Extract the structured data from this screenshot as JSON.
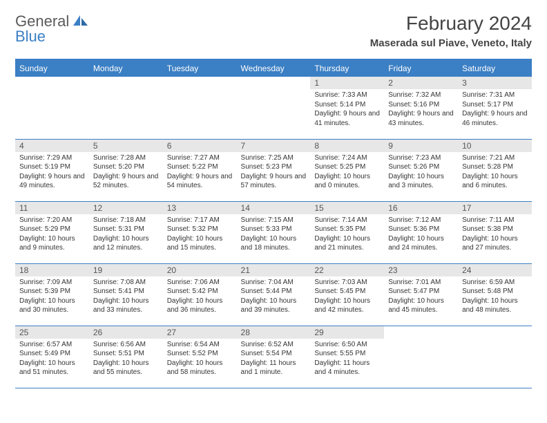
{
  "logo": {
    "text1": "General",
    "text2": "Blue"
  },
  "title": "February 2024",
  "location": "Maserada sul Piave, Veneto, Italy",
  "colors": {
    "header_bg": "#3b7fc4",
    "header_text": "#ffffff",
    "band_bg": "#e7e7e7",
    "border": "#3b7fc4",
    "body_text": "#333333"
  },
  "dayNames": [
    "Sunday",
    "Monday",
    "Tuesday",
    "Wednesday",
    "Thursday",
    "Friday",
    "Saturday"
  ],
  "weeks": [
    [
      null,
      null,
      null,
      null,
      {
        "n": "1",
        "sunrise": "7:33 AM",
        "sunset": "5:14 PM",
        "daylight": "9 hours and 41 minutes."
      },
      {
        "n": "2",
        "sunrise": "7:32 AM",
        "sunset": "5:16 PM",
        "daylight": "9 hours and 43 minutes."
      },
      {
        "n": "3",
        "sunrise": "7:31 AM",
        "sunset": "5:17 PM",
        "daylight": "9 hours and 46 minutes."
      }
    ],
    [
      {
        "n": "4",
        "sunrise": "7:29 AM",
        "sunset": "5:19 PM",
        "daylight": "9 hours and 49 minutes."
      },
      {
        "n": "5",
        "sunrise": "7:28 AM",
        "sunset": "5:20 PM",
        "daylight": "9 hours and 52 minutes."
      },
      {
        "n": "6",
        "sunrise": "7:27 AM",
        "sunset": "5:22 PM",
        "daylight": "9 hours and 54 minutes."
      },
      {
        "n": "7",
        "sunrise": "7:25 AM",
        "sunset": "5:23 PM",
        "daylight": "9 hours and 57 minutes."
      },
      {
        "n": "8",
        "sunrise": "7:24 AM",
        "sunset": "5:25 PM",
        "daylight": "10 hours and 0 minutes."
      },
      {
        "n": "9",
        "sunrise": "7:23 AM",
        "sunset": "5:26 PM",
        "daylight": "10 hours and 3 minutes."
      },
      {
        "n": "10",
        "sunrise": "7:21 AM",
        "sunset": "5:28 PM",
        "daylight": "10 hours and 6 minutes."
      }
    ],
    [
      {
        "n": "11",
        "sunrise": "7:20 AM",
        "sunset": "5:29 PM",
        "daylight": "10 hours and 9 minutes."
      },
      {
        "n": "12",
        "sunrise": "7:18 AM",
        "sunset": "5:31 PM",
        "daylight": "10 hours and 12 minutes."
      },
      {
        "n": "13",
        "sunrise": "7:17 AM",
        "sunset": "5:32 PM",
        "daylight": "10 hours and 15 minutes."
      },
      {
        "n": "14",
        "sunrise": "7:15 AM",
        "sunset": "5:33 PM",
        "daylight": "10 hours and 18 minutes."
      },
      {
        "n": "15",
        "sunrise": "7:14 AM",
        "sunset": "5:35 PM",
        "daylight": "10 hours and 21 minutes."
      },
      {
        "n": "16",
        "sunrise": "7:12 AM",
        "sunset": "5:36 PM",
        "daylight": "10 hours and 24 minutes."
      },
      {
        "n": "17",
        "sunrise": "7:11 AM",
        "sunset": "5:38 PM",
        "daylight": "10 hours and 27 minutes."
      }
    ],
    [
      {
        "n": "18",
        "sunrise": "7:09 AM",
        "sunset": "5:39 PM",
        "daylight": "10 hours and 30 minutes."
      },
      {
        "n": "19",
        "sunrise": "7:08 AM",
        "sunset": "5:41 PM",
        "daylight": "10 hours and 33 minutes."
      },
      {
        "n": "20",
        "sunrise": "7:06 AM",
        "sunset": "5:42 PM",
        "daylight": "10 hours and 36 minutes."
      },
      {
        "n": "21",
        "sunrise": "7:04 AM",
        "sunset": "5:44 PM",
        "daylight": "10 hours and 39 minutes."
      },
      {
        "n": "22",
        "sunrise": "7:03 AM",
        "sunset": "5:45 PM",
        "daylight": "10 hours and 42 minutes."
      },
      {
        "n": "23",
        "sunrise": "7:01 AM",
        "sunset": "5:47 PM",
        "daylight": "10 hours and 45 minutes."
      },
      {
        "n": "24",
        "sunrise": "6:59 AM",
        "sunset": "5:48 PM",
        "daylight": "10 hours and 48 minutes."
      }
    ],
    [
      {
        "n": "25",
        "sunrise": "6:57 AM",
        "sunset": "5:49 PM",
        "daylight": "10 hours and 51 minutes."
      },
      {
        "n": "26",
        "sunrise": "6:56 AM",
        "sunset": "5:51 PM",
        "daylight": "10 hours and 55 minutes."
      },
      {
        "n": "27",
        "sunrise": "6:54 AM",
        "sunset": "5:52 PM",
        "daylight": "10 hours and 58 minutes."
      },
      {
        "n": "28",
        "sunrise": "6:52 AM",
        "sunset": "5:54 PM",
        "daylight": "11 hours and 1 minute."
      },
      {
        "n": "29",
        "sunrise": "6:50 AM",
        "sunset": "5:55 PM",
        "daylight": "11 hours and 4 minutes."
      },
      null,
      null
    ]
  ]
}
